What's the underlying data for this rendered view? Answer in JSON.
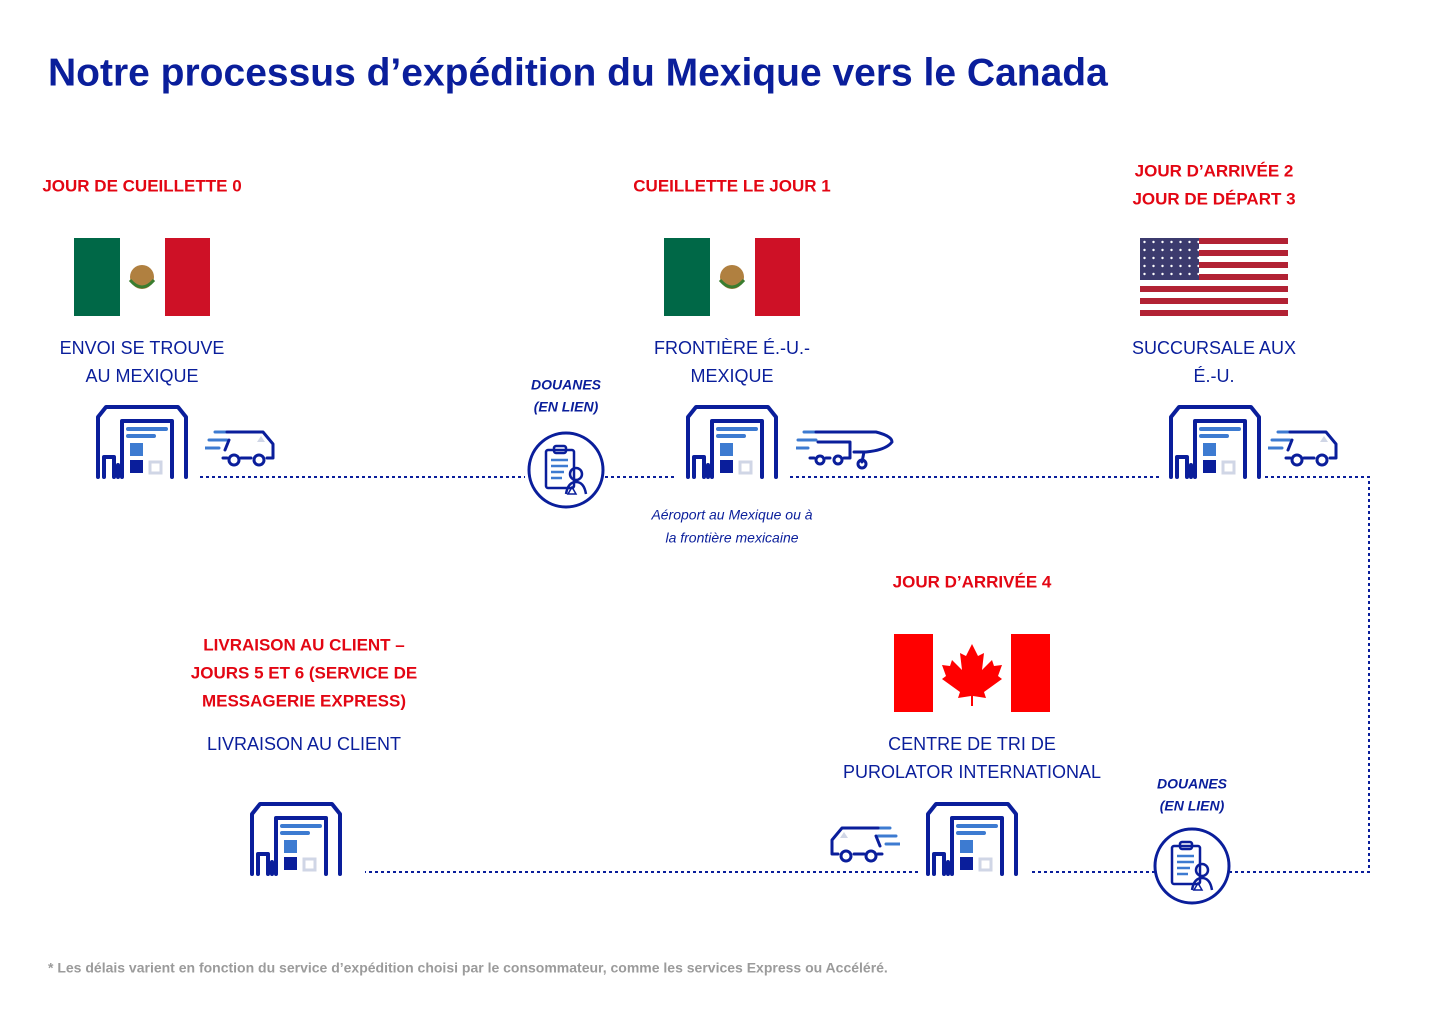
{
  "title": "Notre processus d’expédition du Mexique vers le Canada",
  "stages": [
    {
      "day": [
        "JOUR DE CUEILLETTE 0"
      ],
      "location": [
        "ENVOI SE TROUVE",
        "AU MEXIQUE"
      ]
    },
    {
      "day": [
        "CUEILLETTE LE JOUR 1"
      ],
      "location": [
        "FRONTIÈRE É.-U.-",
        "MEXIQUE"
      ]
    },
    {
      "day": [
        "JOUR D’ARRIVÉE 2",
        "JOUR DE DÉPART 3"
      ],
      "location": [
        "SUCCURSALE AUX",
        "É.-U."
      ]
    },
    {
      "day": [
        "JOUR D’ARRIVÉE 4"
      ],
      "location": [
        "CENTRE DE TRI DE",
        "PUROLATOR INTERNATIONAL"
      ]
    },
    {
      "day": [
        "LIVRAISON AU CLIENT –",
        "JOURS 5 ET 6 (SERVICE DE",
        "MESSAGERIE EXPRESS)"
      ],
      "location": [
        "LIVRAISON AU CLIENT"
      ]
    }
  ],
  "customs": [
    {
      "lines": [
        "DOUANES",
        "(EN LIEN)"
      ]
    },
    {
      "lines": [
        "DOUANES",
        "(EN LIEN)"
      ]
    }
  ],
  "airport_note": [
    "Aéroport au Mexique ou à",
    "la frontière mexicaine"
  ],
  "footnote": "* Les délais varient en fonction du service d’expédition choisi par le consommateur, comme les services Express ou Accéléré."
}
